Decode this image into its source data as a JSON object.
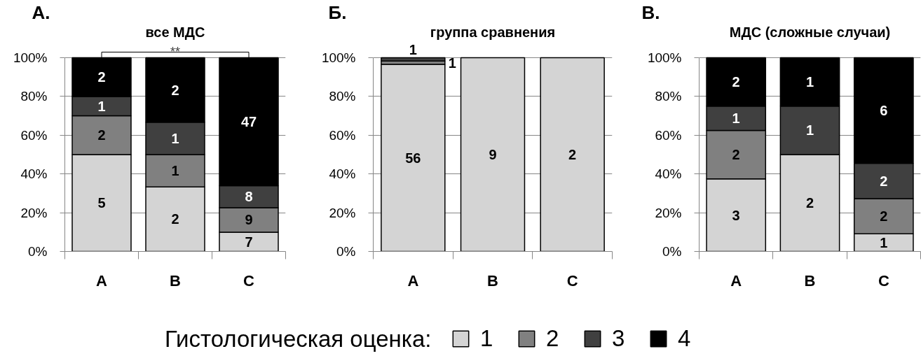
{
  "chart_data": [
    {
      "type": "bar",
      "title": "А.",
      "subtitle": "все МДС",
      "categories": [
        "A",
        "B",
        "C"
      ],
      "stacked": true,
      "series": [
        {
          "color": "#d4d4d4",
          "values": [
            50,
            33.3,
            9.9
          ]
        },
        {
          "color": "#808080",
          "values": [
            20,
            16.7,
            12.7
          ]
        },
        {
          "color": "#404040",
          "values": [
            10,
            16.7,
            11.3
          ]
        },
        {
          "color": "#000000",
          "values": [
            20,
            33.3,
            66.1
          ]
        }
      ],
      "ylim": [
        0,
        100
      ],
      "yticks": [
        {
          "value": 0,
          "label": "0%"
        },
        {
          "value": 20,
          "label": "20%"
        },
        {
          "value": 40,
          "label": "40%"
        },
        {
          "value": 60,
          "label": "60%"
        },
        {
          "value": 80,
          "label": "80%"
        },
        {
          "value": 100,
          "label": "100%"
        }
      ],
      "grid": "y",
      "annotations": [
        "**",
        "5",
        "2",
        "1",
        "2",
        "2",
        "1",
        "1",
        "2",
        "7",
        "9",
        "8",
        "47"
      ]
    },
    {
      "type": "bar",
      "title": "Б.",
      "subtitle": "группа сравнения",
      "categories": [
        "A",
        "B",
        "C"
      ],
      "stacked": true,
      "series": [
        {
          "name": "1",
          "color": "#d4d4d4",
          "values": [
            96.6,
            100,
            100
          ]
        },
        {
          "name": "2",
          "color": "#808080",
          "values": [
            1.7,
            0,
            0
          ]
        },
        {
          "name": "3",
          "color": "#404040",
          "values": [
            1.7,
            0,
            0
          ]
        },
        {
          "name": "4",
          "color": "#000000",
          "values": [
            0,
            0,
            0
          ]
        }
      ],
      "ylim": [
        0,
        100
      ],
      "yticks": [
        {
          "value": 0,
          "label": "0%"
        },
        {
          "value": 20,
          "label": "20%"
        },
        {
          "value": 40,
          "label": "40%"
        },
        {
          "value": 60,
          "label": "60%"
        },
        {
          "value": 80,
          "label": "80%"
        },
        {
          "value": 100,
          "label": "100%"
        }
      ],
      "grid": "y",
      "legend": "bottom",
      "legend_title": "Гистологическая оценка:",
      "annotations": [
        "56",
        "1",
        "1",
        "9",
        "2"
      ]
    },
    {
      "type": "bar",
      "title": "В.",
      "subtitle": "МДС (сложные случаи)",
      "categories": [
        "A",
        "B",
        "C"
      ],
      "stacked": true,
      "series": [
        {
          "color": "#d4d4d4",
          "values": [
            37.5,
            50,
            9.1
          ]
        },
        {
          "color": "#808080",
          "values": [
            25,
            0,
            18.2
          ]
        },
        {
          "color": "#404040",
          "values": [
            12.5,
            25,
            18.2
          ]
        },
        {
          "color": "#000000",
          "values": [
            25,
            25,
            54.5
          ]
        }
      ],
      "ylim": [
        0,
        100
      ],
      "yticks": [
        {
          "value": 0,
          "label": "0%"
        },
        {
          "value": 20,
          "label": "20%"
        },
        {
          "value": 40,
          "label": "40%"
        },
        {
          "value": 60,
          "label": "60%"
        },
        {
          "value": 80,
          "label": "80%"
        },
        {
          "value": 100,
          "label": "100%"
        }
      ],
      "grid": "y",
      "annotations": [
        "3",
        "2",
        "1",
        "2",
        "2",
        "1",
        "1",
        "1",
        "2",
        "2",
        "6"
      ]
    }
  ]
}
